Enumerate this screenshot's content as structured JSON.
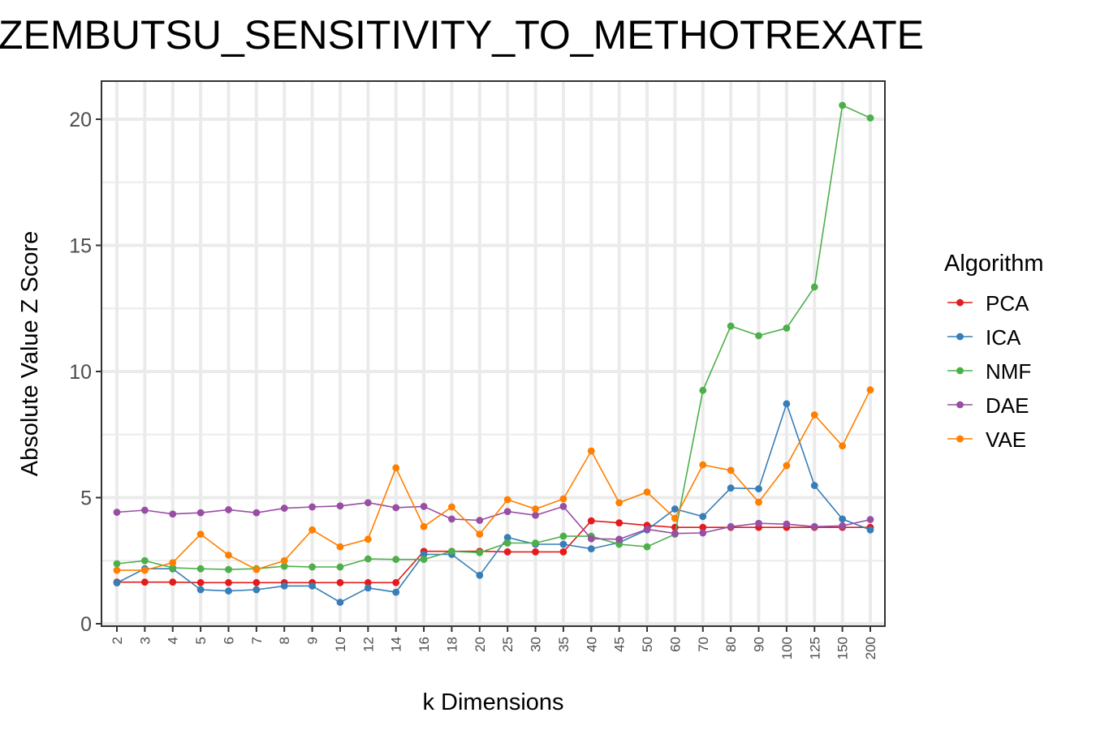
{
  "chart_data": {
    "type": "line",
    "title": "ZEMBUTSU_SENSITIVITY_TO_METHOTREXATE",
    "xlabel": "k Dimensions",
    "ylabel": "Absolute Value Z Score",
    "ylim": [
      0,
      21.5
    ],
    "yticks": [
      0,
      5,
      10,
      15,
      20
    ],
    "grid": true,
    "legend_title": "Algorithm",
    "legend_position": "right",
    "categories": [
      "2",
      "3",
      "4",
      "5",
      "6",
      "7",
      "8",
      "9",
      "10",
      "12",
      "14",
      "16",
      "18",
      "20",
      "25",
      "30",
      "35",
      "40",
      "45",
      "50",
      "60",
      "70",
      "80",
      "90",
      "100",
      "125",
      "150",
      "200"
    ],
    "series": [
      {
        "name": "PCA",
        "color": "#E41A1C",
        "values": [
          1.65,
          1.65,
          1.65,
          1.63,
          1.63,
          1.63,
          1.63,
          1.63,
          1.63,
          1.63,
          1.63,
          2.87,
          2.87,
          2.87,
          2.85,
          2.85,
          2.85,
          4.08,
          4.0,
          3.9,
          3.82,
          3.82,
          3.82,
          3.82,
          3.82,
          3.82,
          3.82,
          3.82
        ]
      },
      {
        "name": "ICA",
        "color": "#377EB8",
        "values": [
          1.62,
          2.18,
          2.18,
          1.35,
          1.3,
          1.35,
          1.5,
          1.5,
          0.85,
          1.42,
          1.25,
          2.75,
          2.75,
          1.92,
          3.42,
          3.15,
          3.15,
          2.97,
          3.22,
          3.72,
          4.55,
          4.25,
          5.38,
          5.35,
          8.72,
          5.48,
          4.15,
          3.72
        ]
      },
      {
        "name": "NMF",
        "color": "#4DAF4A",
        "values": [
          2.38,
          2.5,
          2.22,
          2.18,
          2.15,
          2.18,
          2.28,
          2.25,
          2.25,
          2.57,
          2.55,
          2.55,
          2.87,
          2.82,
          3.2,
          3.2,
          3.47,
          3.47,
          3.15,
          3.05,
          3.55,
          9.25,
          11.8,
          11.42,
          11.72,
          13.35,
          20.55,
          20.05
        ]
      },
      {
        "name": "DAE",
        "color": "#984EA3",
        "values": [
          4.42,
          4.5,
          4.35,
          4.4,
          4.52,
          4.4,
          4.58,
          4.63,
          4.67,
          4.8,
          4.6,
          4.65,
          4.15,
          4.1,
          4.45,
          4.3,
          4.65,
          3.37,
          3.35,
          3.75,
          3.58,
          3.6,
          3.85,
          3.98,
          3.95,
          3.85,
          3.88,
          4.13
        ]
      },
      {
        "name": "VAE",
        "color": "#FF7F00",
        "values": [
          2.12,
          2.12,
          2.42,
          3.55,
          2.72,
          2.15,
          2.5,
          3.72,
          3.05,
          3.35,
          6.18,
          3.85,
          4.63,
          3.55,
          4.92,
          4.55,
          4.95,
          6.85,
          4.8,
          5.22,
          4.18,
          6.3,
          6.08,
          4.82,
          6.27,
          8.28,
          7.05,
          9.27
        ]
      }
    ]
  }
}
